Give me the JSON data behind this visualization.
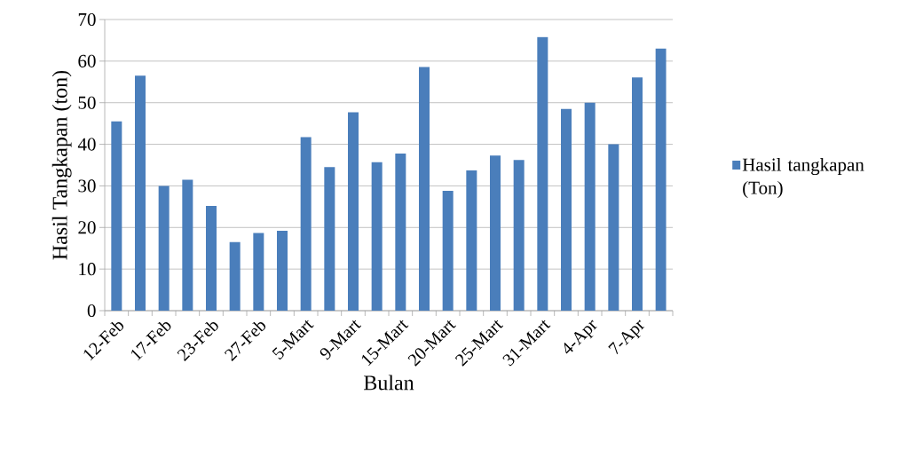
{
  "chart_data": {
    "type": "bar",
    "xlabel": "Bulan",
    "ylabel": "Hasil Tangkapan (ton)",
    "categories": [
      "12-Feb",
      null,
      "17-Feb",
      null,
      "23-Feb",
      null,
      "27-Feb",
      null,
      "5-Mart",
      null,
      "9-Mart",
      null,
      "15-Mart",
      null,
      "20-Mart",
      null,
      "25-Mart",
      null,
      "31-Mart",
      null,
      "4-Apr",
      null,
      "7-Apr",
      null
    ],
    "series": [
      {
        "name": "Hasil tangkapan (Ton)",
        "color": "#4a7ebb",
        "values": [
          45.5,
          56.5,
          30,
          31.5,
          25.2,
          16.5,
          18.7,
          19.2,
          41.7,
          34.5,
          47.7,
          35.7,
          37.8,
          58.6,
          28.8,
          33.7,
          37.3,
          36.2,
          65.8,
          48.5,
          50,
          40,
          56.1,
          63
        ]
      }
    ],
    "ylim": [
      0,
      70
    ],
    "yticks": [
      0,
      10,
      20,
      30,
      40,
      50,
      60,
      70
    ],
    "grid": "y",
    "legend": "right"
  }
}
